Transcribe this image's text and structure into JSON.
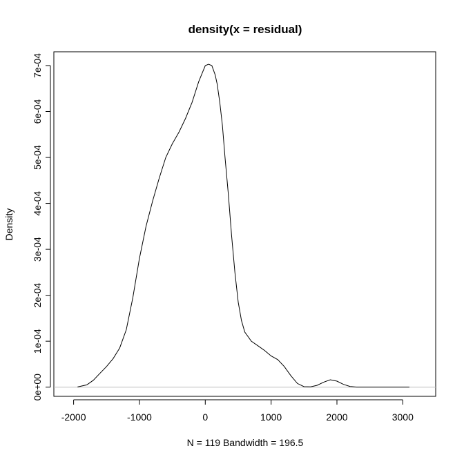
{
  "chart_data": {
    "type": "line",
    "title": "density(x = residual)",
    "xlabel": "N = 119   Bandwidth = 196.5",
    "ylabel": "Density",
    "xlim": [
      -2300,
      3500
    ],
    "ylim": [
      -2e-05,
      0.00073
    ],
    "xticks": [
      -2000,
      -1000,
      0,
      1000,
      2000,
      3000
    ],
    "xtick_labels": [
      "-2000",
      "-1000",
      "0",
      "1000",
      "2000",
      "3000"
    ],
    "yticks": [
      0,
      0.0001,
      0.0002,
      0.0003,
      0.0004,
      0.0005,
      0.0006,
      0.0007
    ],
    "ytick_labels": [
      "0e+00",
      "1e-04",
      "2e-04",
      "3e-04",
      "4e-04",
      "5e-04",
      "6e-04",
      "7e-04"
    ],
    "baseline": 0,
    "grid": false,
    "colors": {
      "line": "#000000",
      "baseline": "#bebebe",
      "frame": "#000000"
    },
    "series": [
      {
        "x": [
          -1940,
          -1800,
          -1700,
          -1600,
          -1500,
          -1400,
          -1300,
          -1200,
          -1100,
          -1000,
          -900,
          -800,
          -700,
          -600,
          -500,
          -400,
          -300,
          -200,
          -100,
          0,
          50,
          100,
          150,
          180,
          220,
          260,
          300,
          350,
          400,
          450,
          500,
          550,
          600,
          700,
          800,
          900,
          1000,
          1100,
          1200,
          1300,
          1400,
          1500,
          1600,
          1700,
          1800,
          1900,
          2000,
          2100,
          2200,
          2300,
          2400,
          2500,
          2600,
          2700,
          2800,
          2900,
          3000,
          3100
        ],
        "y": [
          5e-07,
          5e-06,
          1.5e-05,
          3e-05,
          4.5e-05,
          6.2e-05,
          8.5e-05,
          0.000125,
          0.000195,
          0.00028,
          0.00035,
          0.000405,
          0.000455,
          0.0005,
          0.00053,
          0.000555,
          0.000585,
          0.00062,
          0.000665,
          0.0007,
          0.000703,
          0.0007,
          0.00068,
          0.00066,
          0.00062,
          0.00057,
          0.0005,
          0.00042,
          0.00033,
          0.00025,
          0.000185,
          0.000145,
          0.00012,
          0.0001,
          9e-05,
          8e-05,
          6.8e-05,
          6e-05,
          4.5e-05,
          2.5e-05,
          8e-06,
          1e-06,
          8e-07,
          4e-06,
          1.1e-05,
          1.6e-05,
          1.3e-05,
          6e-06,
          1.5e-06,
          2e-07,
          1e-07,
          1e-07,
          1e-07,
          1e-07,
          1e-07,
          1e-07,
          1e-07,
          1e-07
        ]
      }
    ]
  }
}
